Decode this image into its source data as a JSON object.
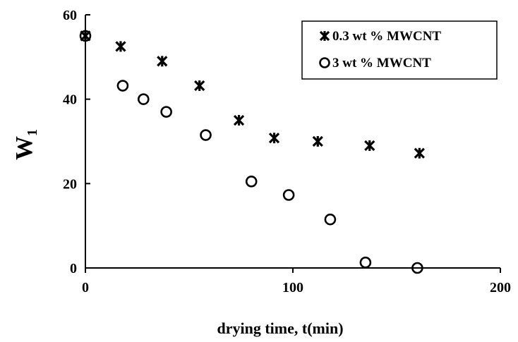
{
  "chart_data": {
    "type": "scatter",
    "xlabel": "drying time, t(min)",
    "ylabel": {
      "main": "W",
      "sub": "1"
    },
    "xlim": [
      0,
      200
    ],
    "ylim": [
      0,
      60
    ],
    "xticks": [
      0,
      100,
      200
    ],
    "yticks": [
      0,
      20,
      40,
      60
    ],
    "xtick_labels": [
      "0",
      "100",
      "200"
    ],
    "ytick_labels": [
      "0",
      "20",
      "40",
      "60"
    ],
    "grid": false,
    "legend_position": "top-right",
    "series": [
      {
        "name": "0.3 wt % MWCNT",
        "marker": "asterisk",
        "color": "#000000",
        "x": [
          0,
          17,
          37,
          55,
          74,
          91,
          112,
          137,
          161
        ],
        "y": [
          55,
          52.5,
          49,
          43.2,
          35,
          30.8,
          30,
          29,
          27.2
        ]
      },
      {
        "name": "3 wt % MWCNT",
        "marker": "circle",
        "color": "#000000",
        "x": [
          0,
          18,
          28,
          39,
          58,
          80,
          98,
          118,
          135,
          160
        ],
        "y": [
          55,
          43.2,
          40,
          37,
          31.5,
          20.5,
          17.3,
          11.5,
          1.3,
          0
        ]
      }
    ]
  }
}
